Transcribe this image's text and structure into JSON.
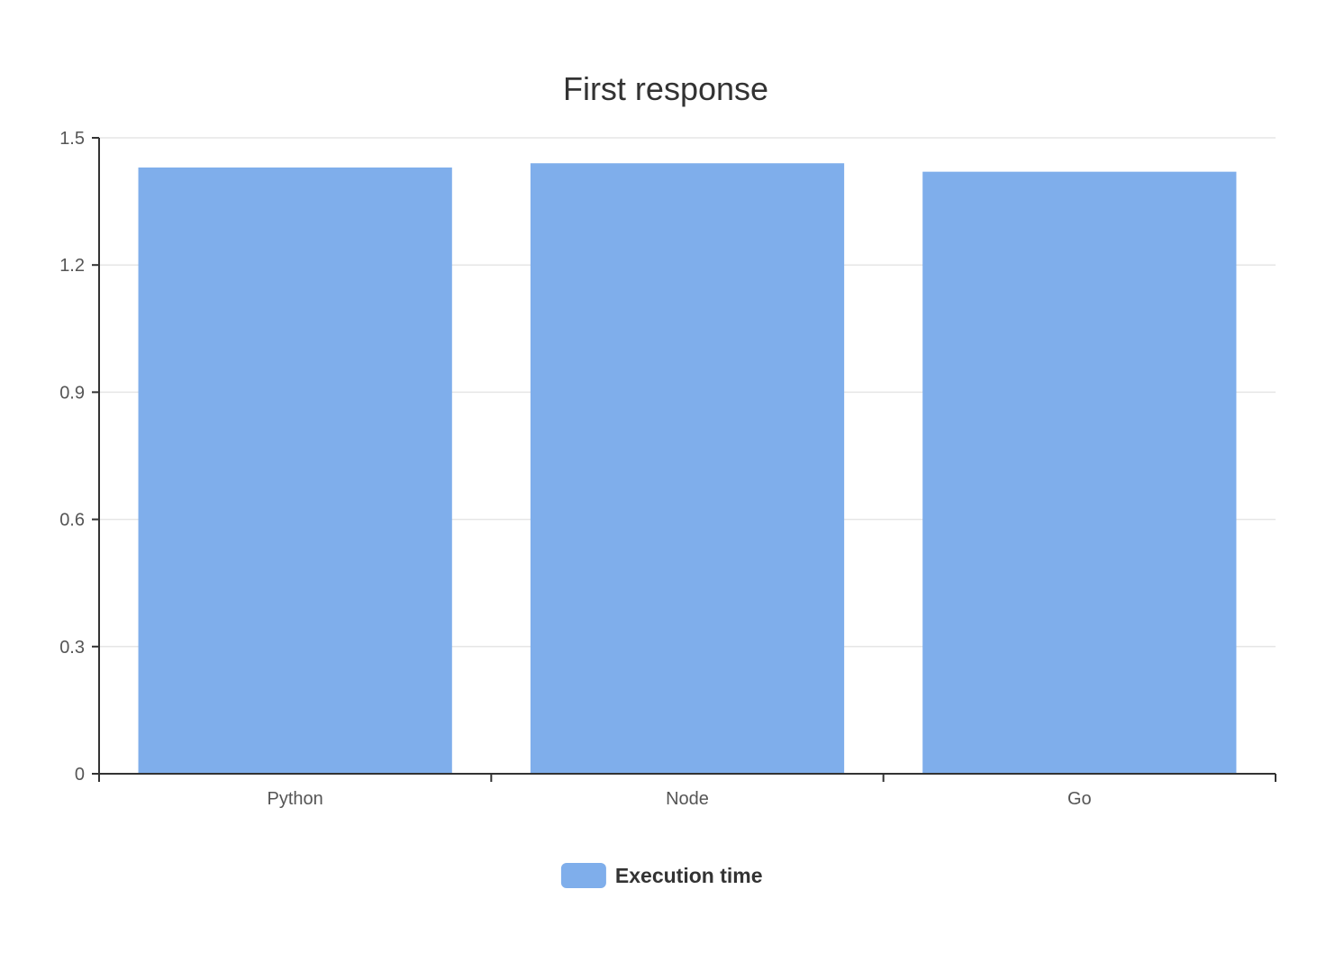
{
  "chart_data": {
    "type": "bar",
    "title": "First response",
    "categories": [
      "Python",
      "Node",
      "Go"
    ],
    "series": [
      {
        "name": "Execution time",
        "values": [
          1.43,
          1.44,
          1.42
        ],
        "color": "#7faeeb"
      }
    ],
    "ylim": [
      0,
      1.5
    ],
    "yticks": [
      0,
      0.3,
      0.6,
      0.9,
      1.2,
      1.5
    ],
    "ytick_labels": [
      "0",
      "0.3",
      "0.6",
      "0.9",
      "1.2",
      "1.5"
    ],
    "grid": true,
    "legend_position": "bottom-center"
  }
}
